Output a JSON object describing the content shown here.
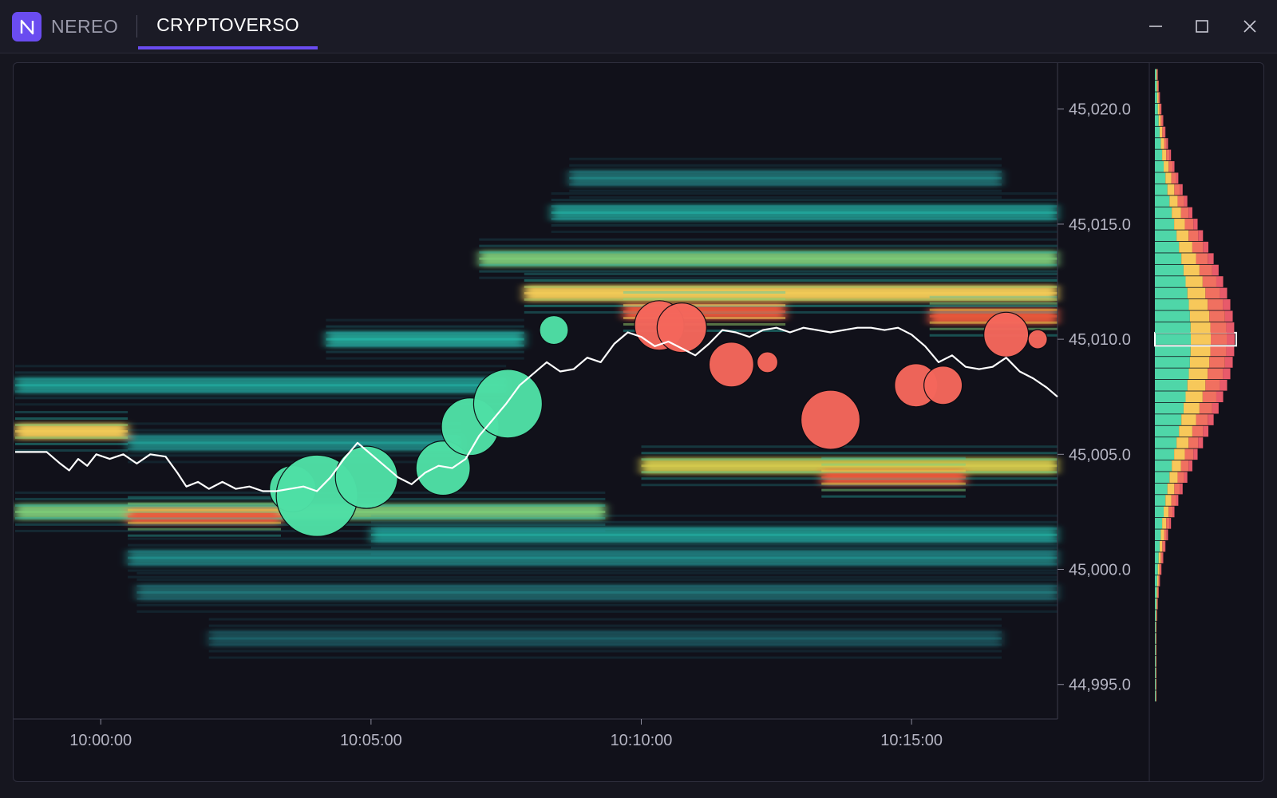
{
  "window": {
    "app_name": "NEREO",
    "tab_label": "CRYPTOVERSO",
    "icons": {
      "logo": "nereo-logo-icon",
      "minimize": "minimize-icon",
      "maximize": "maximize-icon",
      "close": "close-icon"
    },
    "accent_color": "#6a4cf0"
  },
  "chart_data": {
    "type": "heatmap",
    "x_ticks": [
      "10:00:00",
      "10:05:00",
      "10:10:00",
      "10:15:00"
    ],
    "y_ticks": [
      "45,020.0",
      "45,015.0",
      "45,010.0",
      "45,005.0",
      "45,000.0",
      "44,995.0"
    ],
    "ylim": [
      44993.5,
      45022.0
    ],
    "xlim_seconds_from_10_00": [
      -95,
      1062
    ],
    "price_line": {
      "color": "#ffffff",
      "points": [
        [
          -95,
          45005.1
        ],
        [
          -60,
          45005.1
        ],
        [
          -45,
          45004.6
        ],
        [
          -35,
          45004.3
        ],
        [
          -25,
          45004.8
        ],
        [
          -15,
          45004.5
        ],
        [
          -5,
          45005.0
        ],
        [
          10,
          45004.8
        ],
        [
          25,
          45005.0
        ],
        [
          40,
          45004.6
        ],
        [
          55,
          45005.0
        ],
        [
          72,
          45004.9
        ],
        [
          85,
          45004.2
        ],
        [
          95,
          45003.6
        ],
        [
          108,
          45003.8
        ],
        [
          120,
          45003.5
        ],
        [
          135,
          45003.8
        ],
        [
          150,
          45003.5
        ],
        [
          165,
          45003.6
        ],
        [
          180,
          45003.4
        ],
        [
          195,
          45003.4
        ],
        [
          210,
          45003.5
        ],
        [
          225,
          45003.6
        ],
        [
          240,
          45003.4
        ],
        [
          255,
          45004.0
        ],
        [
          270,
          45004.8
        ],
        [
          285,
          45005.5
        ],
        [
          300,
          45005.0
        ],
        [
          315,
          45004.5
        ],
        [
          330,
          45004.0
        ],
        [
          345,
          45003.7
        ],
        [
          360,
          45004.2
        ],
        [
          375,
          45004.5
        ],
        [
          390,
          45004.4
        ],
        [
          405,
          45004.8
        ],
        [
          420,
          45005.8
        ],
        [
          435,
          45006.5
        ],
        [
          450,
          45007.2
        ],
        [
          465,
          45008.0
        ],
        [
          480,
          45008.5
        ],
        [
          495,
          45009.0
        ],
        [
          510,
          45008.6
        ],
        [
          525,
          45008.7
        ],
        [
          540,
          45009.2
        ],
        [
          555,
          45009.0
        ],
        [
          570,
          45009.8
        ],
        [
          585,
          45010.3
        ],
        [
          600,
          45010.1
        ],
        [
          615,
          45009.7
        ],
        [
          630,
          45009.9
        ],
        [
          645,
          45009.6
        ],
        [
          660,
          45009.3
        ],
        [
          675,
          45009.8
        ],
        [
          690,
          45010.4
        ],
        [
          705,
          45010.3
        ],
        [
          720,
          45010.1
        ],
        [
          735,
          45010.4
        ],
        [
          750,
          45010.5
        ],
        [
          765,
          45010.3
        ],
        [
          780,
          45010.5
        ],
        [
          795,
          45010.4
        ],
        [
          810,
          45010.3
        ],
        [
          825,
          45010.4
        ],
        [
          840,
          45010.5
        ],
        [
          855,
          45010.5
        ],
        [
          870,
          45010.4
        ],
        [
          885,
          45010.5
        ],
        [
          900,
          45010.2
        ],
        [
          915,
          45009.7
        ],
        [
          930,
          45009.0
        ],
        [
          945,
          45009.3
        ],
        [
          960,
          45008.8
        ],
        [
          975,
          45008.7
        ],
        [
          990,
          45008.8
        ],
        [
          1005,
          45009.2
        ],
        [
          1020,
          45008.6
        ],
        [
          1035,
          45008.3
        ],
        [
          1050,
          45007.9
        ],
        [
          1062,
          45007.5
        ]
      ]
    },
    "trades": [
      {
        "t": 213,
        "price": 45003.5,
        "size": 29,
        "side": "buy"
      },
      {
        "t": 240,
        "price": 45003.2,
        "size": 51,
        "side": "buy"
      },
      {
        "t": 295,
        "price": 45004.0,
        "size": 39,
        "side": "buy"
      },
      {
        "t": 380,
        "price": 45004.4,
        "size": 34,
        "side": "buy"
      },
      {
        "t": 410,
        "price": 45006.2,
        "size": 36,
        "side": "buy"
      },
      {
        "t": 452,
        "price": 45007.2,
        "size": 43,
        "side": "buy"
      },
      {
        "t": 503,
        "price": 45010.4,
        "size": 18,
        "side": "buy"
      },
      {
        "t": 620,
        "price": 45010.6,
        "size": 31,
        "side": "sell"
      },
      {
        "t": 645,
        "price": 45010.5,
        "size": 31,
        "side": "sell"
      },
      {
        "t": 700,
        "price": 45008.9,
        "size": 28,
        "side": "sell"
      },
      {
        "t": 740,
        "price": 45009.0,
        "size": 13,
        "side": "sell"
      },
      {
        "t": 810,
        "price": 45006.5,
        "size": 37,
        "side": "sell"
      },
      {
        "t": 905,
        "price": 45008.0,
        "size": 27,
        "side": "sell"
      },
      {
        "t": 935,
        "price": 45008.0,
        "size": 24,
        "side": "sell"
      },
      {
        "t": 1005,
        "price": 45010.2,
        "size": 28,
        "side": "sell"
      },
      {
        "t": 1040,
        "price": 45010.0,
        "size": 12,
        "side": "sell"
      }
    ],
    "heat_bands": [
      {
        "price": 45012.0,
        "t_start": 470,
        "t_end": 1062,
        "intensity": 0.85
      },
      {
        "price": 45011.2,
        "t_start": 580,
        "t_end": 760,
        "intensity": 1.0
      },
      {
        "price": 45011.0,
        "t_start": 920,
        "t_end": 1062,
        "intensity": 0.95
      },
      {
        "price": 45013.5,
        "t_start": 420,
        "t_end": 1062,
        "intensity": 0.6
      },
      {
        "price": 45015.5,
        "t_start": 500,
        "t_end": 1062,
        "intensity": 0.45
      },
      {
        "price": 45017.0,
        "t_start": 520,
        "t_end": 1000,
        "intensity": 0.3
      },
      {
        "price": 45010.0,
        "t_start": 250,
        "t_end": 470,
        "intensity": 0.5
      },
      {
        "price": 45008.0,
        "t_start": -95,
        "t_end": 450,
        "intensity": 0.45
      },
      {
        "price": 45006.0,
        "t_start": -95,
        "t_end": 30,
        "intensity": 0.8
      },
      {
        "price": 45005.5,
        "t_start": 30,
        "t_end": 400,
        "intensity": 0.4
      },
      {
        "price": 45004.5,
        "t_start": 600,
        "t_end": 1062,
        "intensity": 0.75
      },
      {
        "price": 45004.0,
        "t_start": 800,
        "t_end": 960,
        "intensity": 0.95
      },
      {
        "price": 45002.5,
        "t_start": -95,
        "t_end": 560,
        "intensity": 0.6
      },
      {
        "price": 45002.3,
        "t_start": 30,
        "t_end": 200,
        "intensity": 0.95
      },
      {
        "price": 45001.5,
        "t_start": 300,
        "t_end": 1062,
        "intensity": 0.45
      },
      {
        "price": 45000.5,
        "t_start": 30,
        "t_end": 1062,
        "intensity": 0.35
      },
      {
        "price": 44999.0,
        "t_start": 40,
        "t_end": 1062,
        "intensity": 0.25
      },
      {
        "price": 44997.0,
        "t_start": 120,
        "t_end": 1000,
        "intensity": 0.15
      }
    ],
    "volume_profile": {
      "highlight_price": 45010.0,
      "colors": [
        "#4fd6a8",
        "#f7c85a",
        "#f07060",
        "#e85a6a"
      ]
    },
    "legend": "none",
    "grid": false
  }
}
